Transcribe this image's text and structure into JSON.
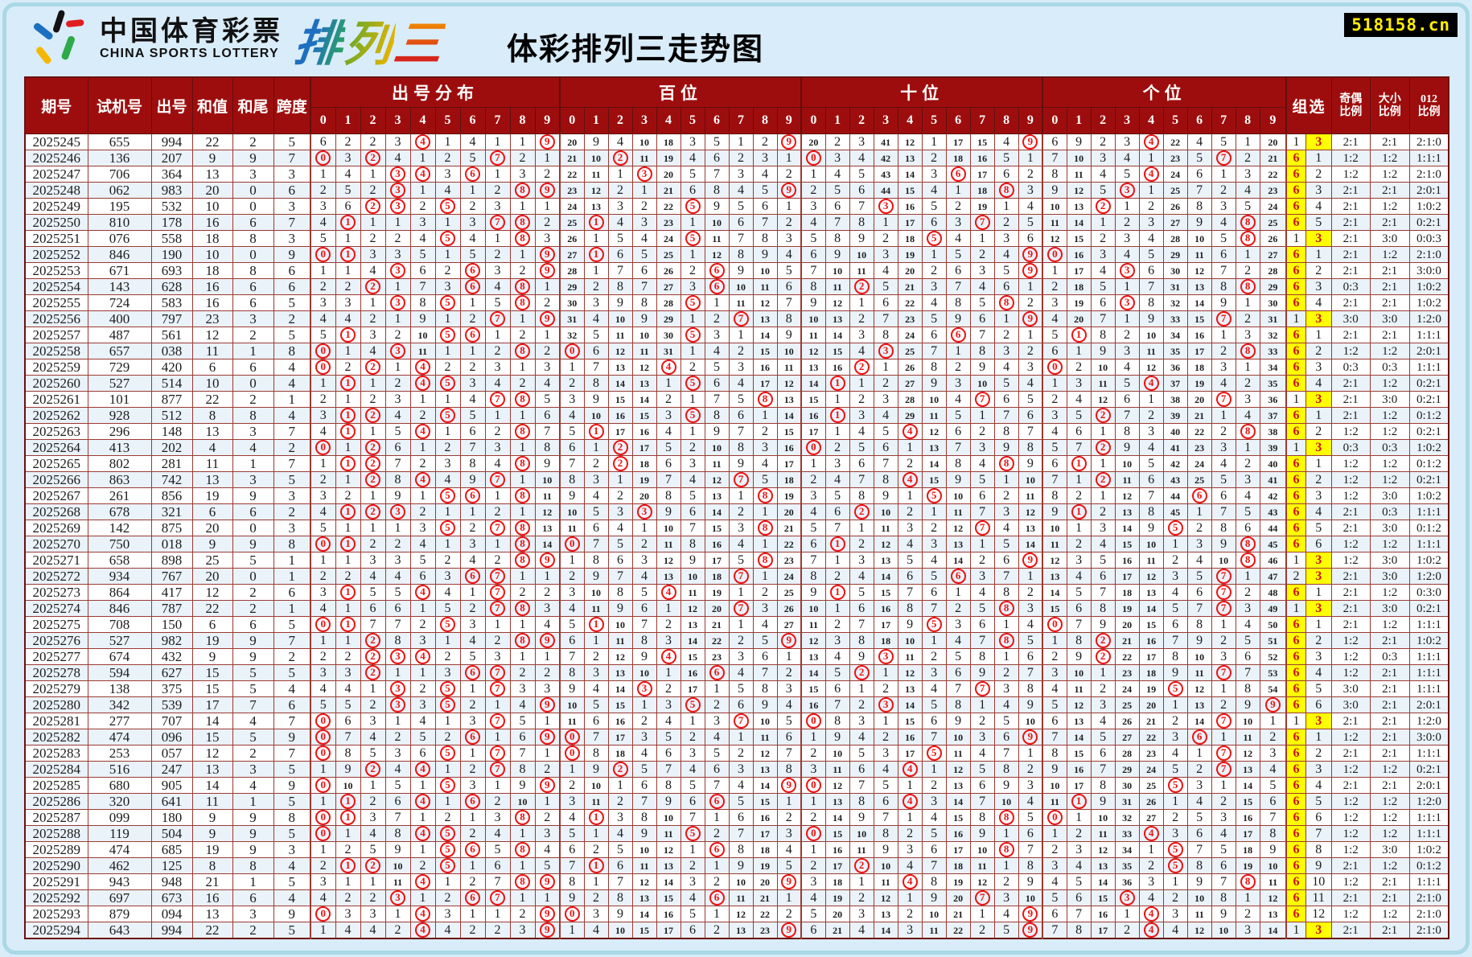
{
  "page": {
    "title": "体彩排列三走势图",
    "site_badge": "518158.cn",
    "logo": {
      "cn": "中国体育彩票",
      "en": "CHINA SPORTS LOTTERY",
      "product_chars": [
        "排",
        "列",
        "三"
      ]
    },
    "background": "#d9ecf9",
    "frame_color": "#a9d8e6"
  },
  "colors": {
    "header_bg": "#9e0d0d",
    "header_text": "#ffffff",
    "grid_line": "#9b3a32",
    "count_text": "#1c1c1c",
    "circle_red": "#ee1111",
    "group_yellow": "#ffff00",
    "group_digit_red": "#cf1010",
    "row_stripe": "#eaf2fa"
  },
  "table": {
    "left_headers": [
      "期号",
      "试机号",
      "出号",
      "和值",
      "和尾",
      "跨度"
    ],
    "sections": [
      {
        "key": "dist",
        "label": "出号分布",
        "digits": [
          "0",
          "1",
          "2",
          "3",
          "4",
          "5",
          "6",
          "7",
          "8",
          "9"
        ]
      },
      {
        "key": "hundreds",
        "label": "百位",
        "digits": [
          "0",
          "1",
          "2",
          "3",
          "4",
          "5",
          "6",
          "7",
          "8",
          "9"
        ]
      },
      {
        "key": "tens",
        "label": "十位",
        "digits": [
          "0",
          "1",
          "2",
          "3",
          "4",
          "5",
          "6",
          "7",
          "8",
          "9"
        ]
      },
      {
        "key": "units",
        "label": "个位",
        "digits": [
          "0",
          "1",
          "2",
          "3",
          "4",
          "5",
          "6",
          "7",
          "8",
          "9"
        ]
      }
    ],
    "group_header": "组选",
    "group_type_labels": {
      "six": "6",
      "three": "3"
    },
    "ratio_headers": [
      [
        "奇偶",
        "比例"
      ],
      [
        "大小",
        "比例"
      ],
      [
        "012",
        "比例"
      ]
    ]
  },
  "chart_data": {
    "type": "table",
    "title": "体彩排列三走势图",
    "columns": [
      "期号",
      "试机号",
      "出号"
    ],
    "omission_baselines": {
      "dist": [
        5,
        1,
        1,
        2,
        0,
        0,
        3,
        0,
        0,
        0
      ],
      "hundreds": [
        19,
        8,
        3,
        9,
        17,
        2,
        4,
        0,
        1,
        0
      ],
      "tens": [
        19,
        1,
        2,
        40,
        11,
        0,
        16,
        14,
        3,
        0
      ],
      "units": [
        5,
        8,
        1,
        2,
        0,
        21,
        3,
        4,
        0,
        19
      ],
      "group": {
        "miss6": 0,
        "miss3": 0
      }
    },
    "rows": [
      [
        "2025245",
        "655",
        "994"
      ],
      [
        "2025246",
        "136",
        "207"
      ],
      [
        "2025247",
        "706",
        "364"
      ],
      [
        "2025248",
        "062",
        "983"
      ],
      [
        "2025249",
        "195",
        "532"
      ],
      [
        "2025250",
        "810",
        "178"
      ],
      [
        "2025251",
        "076",
        "558"
      ],
      [
        "2025252",
        "846",
        "190"
      ],
      [
        "2025253",
        "671",
        "693"
      ],
      [
        "2025254",
        "143",
        "628"
      ],
      [
        "2025255",
        "724",
        "583"
      ],
      [
        "2025256",
        "400",
        "797"
      ],
      [
        "2025257",
        "487",
        "561"
      ],
      [
        "2025258",
        "657",
        "038"
      ],
      [
        "2025259",
        "729",
        "420"
      ],
      [
        "2025260",
        "527",
        "514"
      ],
      [
        "2025261",
        "101",
        "877"
      ],
      [
        "2025262",
        "928",
        "512"
      ],
      [
        "2025263",
        "296",
        "148"
      ],
      [
        "2025264",
        "413",
        "202"
      ],
      [
        "2025265",
        "802",
        "281"
      ],
      [
        "2025266",
        "863",
        "742"
      ],
      [
        "2025267",
        "261",
        "856"
      ],
      [
        "2025268",
        "678",
        "321"
      ],
      [
        "2025269",
        "142",
        "875"
      ],
      [
        "2025270",
        "750",
        "018"
      ],
      [
        "2025271",
        "658",
        "898"
      ],
      [
        "2025272",
        "934",
        "767"
      ],
      [
        "2025273",
        "864",
        "417"
      ],
      [
        "2025274",
        "846",
        "787"
      ],
      [
        "2025275",
        "708",
        "150"
      ],
      [
        "2025276",
        "527",
        "982"
      ],
      [
        "2025277",
        "674",
        "432"
      ],
      [
        "2025278",
        "594",
        "627"
      ],
      [
        "2025279",
        "138",
        "375"
      ],
      [
        "2025280",
        "342",
        "539"
      ],
      [
        "2025281",
        "277",
        "707"
      ],
      [
        "2025282",
        "474",
        "096"
      ],
      [
        "2025283",
        "253",
        "057"
      ],
      [
        "2025284",
        "516",
        "247"
      ],
      [
        "2025285",
        "680",
        "905"
      ],
      [
        "2025286",
        "320",
        "641"
      ],
      [
        "2025287",
        "099",
        "180"
      ],
      [
        "2025288",
        "119",
        "504"
      ],
      [
        "2025289",
        "474",
        "685"
      ],
      [
        "2025290",
        "462",
        "125"
      ],
      [
        "2025291",
        "943",
        "948"
      ],
      [
        "2025292",
        "697",
        "673"
      ],
      [
        "2025293",
        "879",
        "094"
      ],
      [
        "2025294",
        "643",
        "994"
      ]
    ]
  }
}
